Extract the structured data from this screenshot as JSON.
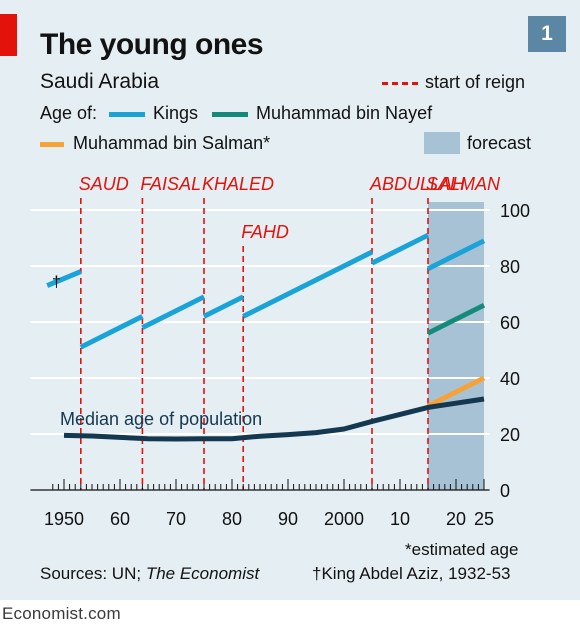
{
  "header": {
    "title": "The young ones",
    "subtitle": "Saudi Arabia",
    "badge": "1"
  },
  "legend": {
    "reign": "start of reign",
    "age_of": "Age of:",
    "kings": "Kings",
    "nayef": "Muhammad bin Nayef",
    "salman": "Muhammad bin Salman*",
    "forecast": "forecast"
  },
  "colors": {
    "kings": "#19a3d8",
    "nayef": "#138a7a",
    "salman": "#f7a239",
    "median": "#14384f",
    "reign": "#e3120b",
    "forecast": "#a7c2d4",
    "background": "#e5eef3"
  },
  "chart_data": {
    "type": "line",
    "xlim": [
      1944,
      2026
    ],
    "ylim": [
      0,
      100
    ],
    "forecast_range": [
      2015,
      2025
    ],
    "x_tick_labels": [
      {
        "x": 1950,
        "label": "1950"
      },
      {
        "x": 1960,
        "label": "60"
      },
      {
        "x": 1970,
        "label": "70"
      },
      {
        "x": 1980,
        "label": "80"
      },
      {
        "x": 1990,
        "label": "90"
      },
      {
        "x": 2000,
        "label": "2000"
      },
      {
        "x": 2010,
        "label": "10"
      },
      {
        "x": 2020,
        "label": "20"
      },
      {
        "x": 2025,
        "label": "25"
      }
    ],
    "y_ticks": [
      0,
      20,
      40,
      60,
      80,
      100
    ],
    "reigns": [
      {
        "name": "SAUD",
        "year": 1953,
        "row": 1
      },
      {
        "name": "FAISAL",
        "year": 1964,
        "row": 1
      },
      {
        "name": "KHALED",
        "year": 1975,
        "row": 1
      },
      {
        "name": "FAHD",
        "year": 1982,
        "row": 2
      },
      {
        "name": "ABDULLAH",
        "year": 2005,
        "row": 1
      },
      {
        "name": "SALMAN",
        "year": 2015,
        "row": 1
      }
    ],
    "series": [
      {
        "key": "kings",
        "segments": [
          [
            [
              1947,
              73
            ],
            [
              1953,
              78
            ]
          ],
          [
            [
              1953,
              51
            ],
            [
              1964,
              62
            ]
          ],
          [
            [
              1964,
              58
            ],
            [
              1975,
              69
            ]
          ],
          [
            [
              1975,
              62
            ],
            [
              1982,
              69
            ]
          ],
          [
            [
              1982,
              62
            ],
            [
              2005,
              85
            ]
          ],
          [
            [
              2005,
              81
            ],
            [
              2015,
              91
            ]
          ],
          [
            [
              2015,
              79
            ],
            [
              2025,
              89
            ]
          ]
        ]
      },
      {
        "key": "nayef",
        "segments": [
          [
            [
              2015,
              56
            ],
            [
              2025,
              66
            ]
          ]
        ]
      },
      {
        "key": "salman",
        "segments": [
          [
            [
              2015,
              30
            ],
            [
              2025,
              40
            ]
          ]
        ]
      },
      {
        "key": "median",
        "segments": [
          [
            [
              1950,
              19.5
            ],
            [
              1955,
              19.3
            ],
            [
              1960,
              18.8
            ],
            [
              1965,
              18.3
            ],
            [
              1970,
              18.2
            ],
            [
              1975,
              18.3
            ],
            [
              1980,
              18.3
            ],
            [
              1985,
              19.2
            ],
            [
              1990,
              19.8
            ],
            [
              1995,
              20.5
            ],
            [
              2000,
              21.8
            ],
            [
              2005,
              24.5
            ],
            [
              2010,
              27.0
            ],
            [
              2015,
              29.5
            ],
            [
              2020,
              31.0
            ],
            [
              2025,
              32.5
            ]
          ]
        ]
      }
    ],
    "annotations": {
      "median_label": "Median age of population",
      "dagger": "†"
    }
  },
  "footer": {
    "estimated": "*estimated age",
    "sources_prefix": "Sources: UN; ",
    "sources_italic": "The Economist",
    "dagger_note": "†King Abdel Aziz, 1932-53",
    "brand": "Economist.com"
  }
}
